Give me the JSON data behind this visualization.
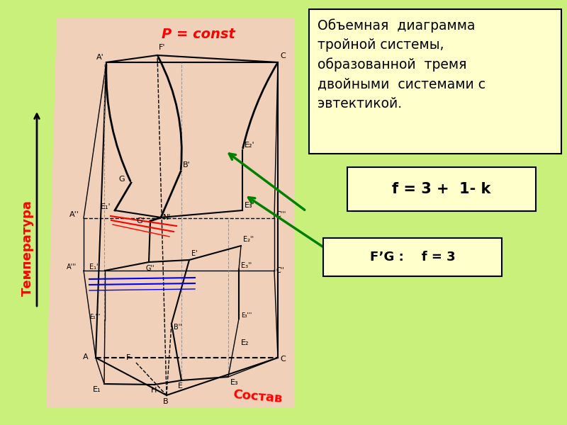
{
  "bg_color": "#c8f07a",
  "diagram_bg": "#f0d0b8",
  "title_box_text": "Объемная  диаграмма\nтройной системы,\nобразованной  тремя\nдвойными  системами с\nэвтектикой.",
  "formula_box_text": "f = 3 +  1- k",
  "fg_label_text": "F’G :    f = 3",
  "p_const_text": "P = const",
  "temp_label": "Температура",
  "sostav_label": "Состав",
  "title_box_color": "#ffffcc",
  "formula_box_color": "#ffffcc",
  "fg_box_color": "#ffffcc"
}
